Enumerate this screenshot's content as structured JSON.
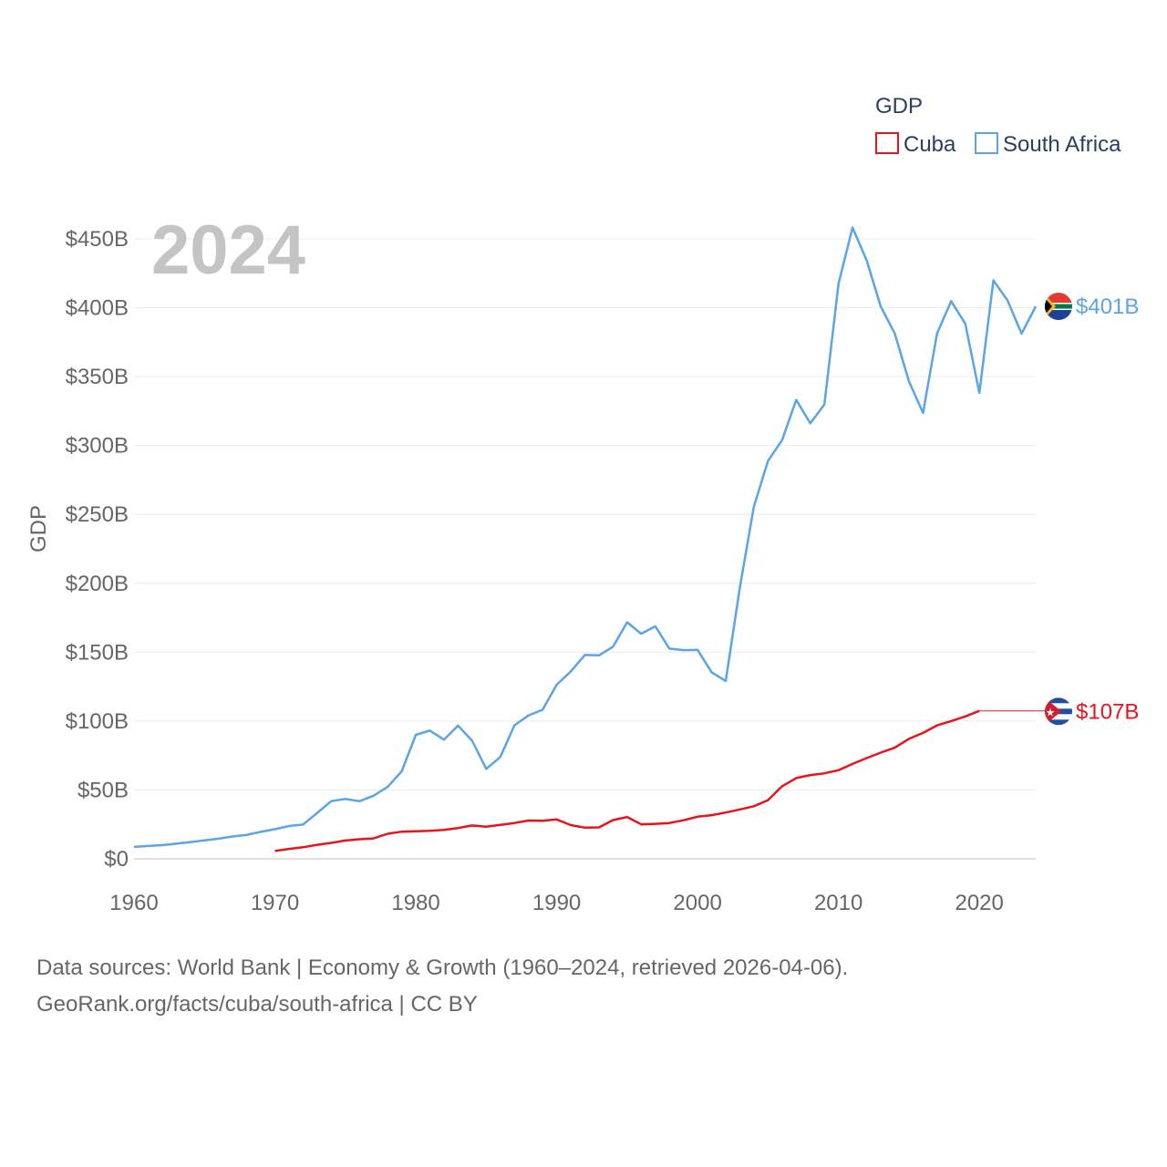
{
  "chart_data": {
    "type": "line",
    "title": "GDP",
    "year_label": "2024",
    "ylabel": "GDP",
    "xlabel": "",
    "xlim": [
      1960,
      2024
    ],
    "ylim": [
      0,
      450
    ],
    "x_ticks": [
      1960,
      1970,
      1980,
      1990,
      2000,
      2010,
      2020
    ],
    "y_ticks": [
      0,
      50,
      100,
      150,
      200,
      250,
      300,
      350,
      400,
      450
    ],
    "y_tick_labels": [
      "$0",
      "$50B",
      "$100B",
      "$150B",
      "$200B",
      "$250B",
      "$300B",
      "$350B",
      "$400B",
      "$450B"
    ],
    "legend": {
      "title": "GDP",
      "position": "top-right"
    },
    "series": [
      {
        "name": "Cuba",
        "color": "#e8141c",
        "end_label": "$107B",
        "end_value": 107,
        "flag_icon": "cuba-flag-icon",
        "x": [
          1970,
          1971,
          1972,
          1973,
          1974,
          1975,
          1976,
          1977,
          1978,
          1979,
          1980,
          1981,
          1982,
          1983,
          1984,
          1985,
          1986,
          1987,
          1988,
          1989,
          1990,
          1991,
          1992,
          1993,
          1994,
          1995,
          1996,
          1997,
          1998,
          1999,
          2000,
          2001,
          2002,
          2003,
          2004,
          2005,
          2006,
          2007,
          2008,
          2009,
          2010,
          2011,
          2012,
          2013,
          2014,
          2015,
          2016,
          2017,
          2018,
          2019,
          2020
        ],
        "values": [
          5.7,
          7.2,
          8.4,
          10.2,
          11.6,
          13.3,
          14.2,
          14.8,
          18.2,
          19.7,
          20.0,
          20.3,
          21.0,
          22.4,
          24.2,
          23.3,
          24.6,
          26.0,
          27.8,
          27.6,
          28.6,
          24.5,
          22.6,
          22.8,
          28.1,
          30.4,
          25.0,
          25.4,
          26.0,
          28.0,
          30.6,
          31.7,
          33.6,
          35.9,
          38.2,
          42.6,
          52.7,
          58.6,
          60.8,
          62.1,
          64.3,
          68.9,
          73.1,
          77.1,
          80.7,
          87.1,
          91.4,
          96.9,
          100.0,
          103.4,
          107.4
        ],
        "extends_to": 2024
      },
      {
        "name": "South Africa",
        "color": "#5ba4e5",
        "end_label": "$401B",
        "end_value": 401,
        "flag_icon": "south-africa-flag-icon",
        "x": [
          1960,
          1961,
          1962,
          1963,
          1964,
          1965,
          1966,
          1967,
          1968,
          1969,
          1970,
          1971,
          1972,
          1973,
          1974,
          1975,
          1976,
          1977,
          1978,
          1979,
          1980,
          1981,
          1982,
          1983,
          1984,
          1985,
          1986,
          1987,
          1988,
          1989,
          1990,
          1991,
          1992,
          1993,
          1994,
          1995,
          1996,
          1997,
          1998,
          1999,
          2000,
          2001,
          2002,
          2003,
          2004,
          2005,
          2006,
          2007,
          2008,
          2009,
          2010,
          2011,
          2012,
          2013,
          2014,
          2015,
          2016,
          2017,
          2018,
          2019,
          2020,
          2021,
          2022,
          2023,
          2024
        ],
        "values": [
          8.7,
          9.3,
          9.9,
          11.0,
          12.2,
          13.4,
          14.6,
          16.2,
          17.4,
          19.6,
          21.5,
          23.8,
          24.9,
          33.3,
          41.9,
          43.5,
          41.8,
          45.8,
          52.2,
          63.5,
          90.0,
          93.1,
          86.5,
          96.7,
          85.7,
          65.3,
          73.9,
          96.9,
          104.1,
          108.2,
          126.4,
          136.0,
          148.0,
          147.7,
          154.0,
          171.7,
          163.4,
          168.8,
          152.6,
          151.5,
          151.7,
          135.4,
          129.1,
          197.0,
          255.8,
          288.9,
          303.9,
          333.1,
          316.1,
          329.8,
          417.4,
          458.2,
          434.4,
          400.9,
          381.2,
          346.7,
          323.6,
          381.4,
          404.8,
          388.5,
          338.2,
          419.9,
          405.3,
          381.2,
          401.0
        ]
      }
    ]
  },
  "footer": {
    "line1": "Data sources: World Bank | Economy & Growth (1960–2024, retrieved 2026-04-06).",
    "line2": "GeoRank.org/facts/cuba/south-africa | CC BY"
  }
}
